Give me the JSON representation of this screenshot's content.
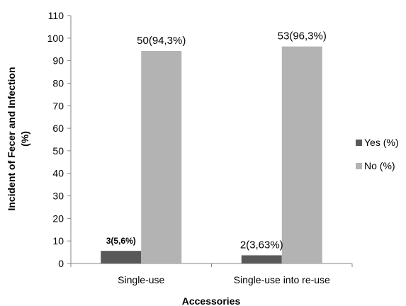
{
  "chart_data": {
    "type": "bar",
    "categories": [
      "Single-use",
      "Single-use into re-use"
    ],
    "series": [
      {
        "name": "Yes (%)",
        "values": [
          5.6,
          3.63
        ],
        "labels": [
          "3(5,6%)",
          "2(3,63%)"
        ],
        "color": "#595959"
      },
      {
        "name": "No (%)",
        "values": [
          94.3,
          96.3
        ],
        "labels": [
          "50(94,3%)",
          "53(96,3%)"
        ],
        "color": "#b3b3b3"
      }
    ],
    "xlabel": "Accessories",
    "ylabel_line1": "Incident of Fecer and Infection",
    "ylabel_line2": "(%)",
    "ylim": [
      0,
      110
    ],
    "yticks": [
      "0",
      "10",
      "20",
      "30",
      "40",
      "50",
      "60",
      "70",
      "80",
      "90",
      "100",
      "110"
    ],
    "grid": false,
    "legend_position": "right"
  }
}
